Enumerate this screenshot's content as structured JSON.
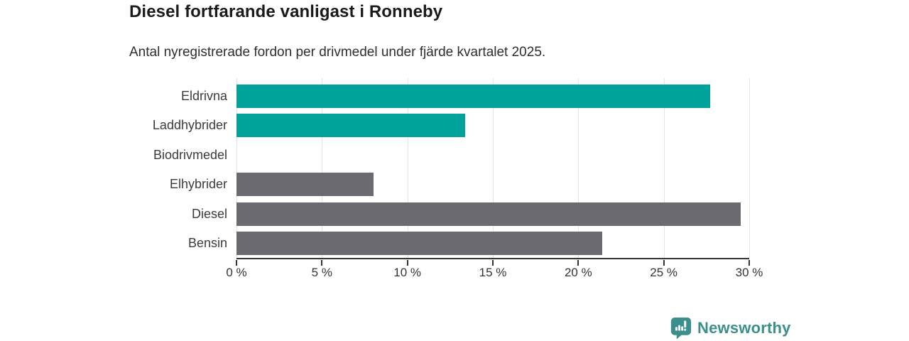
{
  "chart": {
    "title": "Diesel fortfarande vanligast i Ronneby",
    "subtitle": "Antal nyregistrerade fordon per drivmedel under fjärde kvartalet 2025."
  },
  "chart_data": {
    "type": "bar",
    "orientation": "horizontal",
    "title": "Diesel fortfarande vanligast i Ronneby",
    "subtitle": "Antal nyregistrerade fordon per drivmedel under fjärde kvartalet 2025.",
    "categories": [
      "Eldrivna",
      "Laddhybrider",
      "Biodrivmedel",
      "Elhybrider",
      "Diesel",
      "Bensin"
    ],
    "values": [
      27.7,
      13.4,
      0,
      8.0,
      29.5,
      21.4
    ],
    "bar_colors": [
      "#00a39b",
      "#00a39b",
      "#00a39b",
      "#6b6a70",
      "#6b6a70",
      "#6b6a70"
    ],
    "xlabel": "",
    "ylabel": "",
    "xlim": [
      0,
      30
    ],
    "xticks": [
      0,
      5,
      10,
      15,
      20,
      25,
      30
    ],
    "xtick_labels": [
      "0 %",
      "5 %",
      "10 %",
      "15 %",
      "20 %",
      "25 %",
      "30 %"
    ],
    "grid": true,
    "legend": false
  },
  "branding": {
    "wordmark": "Newsworthy",
    "logo_color": "#3a8f8c"
  },
  "colors": {
    "accent_teal": "#00a39b",
    "neutral_gray": "#6b6a70",
    "axis": "#333333",
    "gridline": "#e4e4e4"
  }
}
